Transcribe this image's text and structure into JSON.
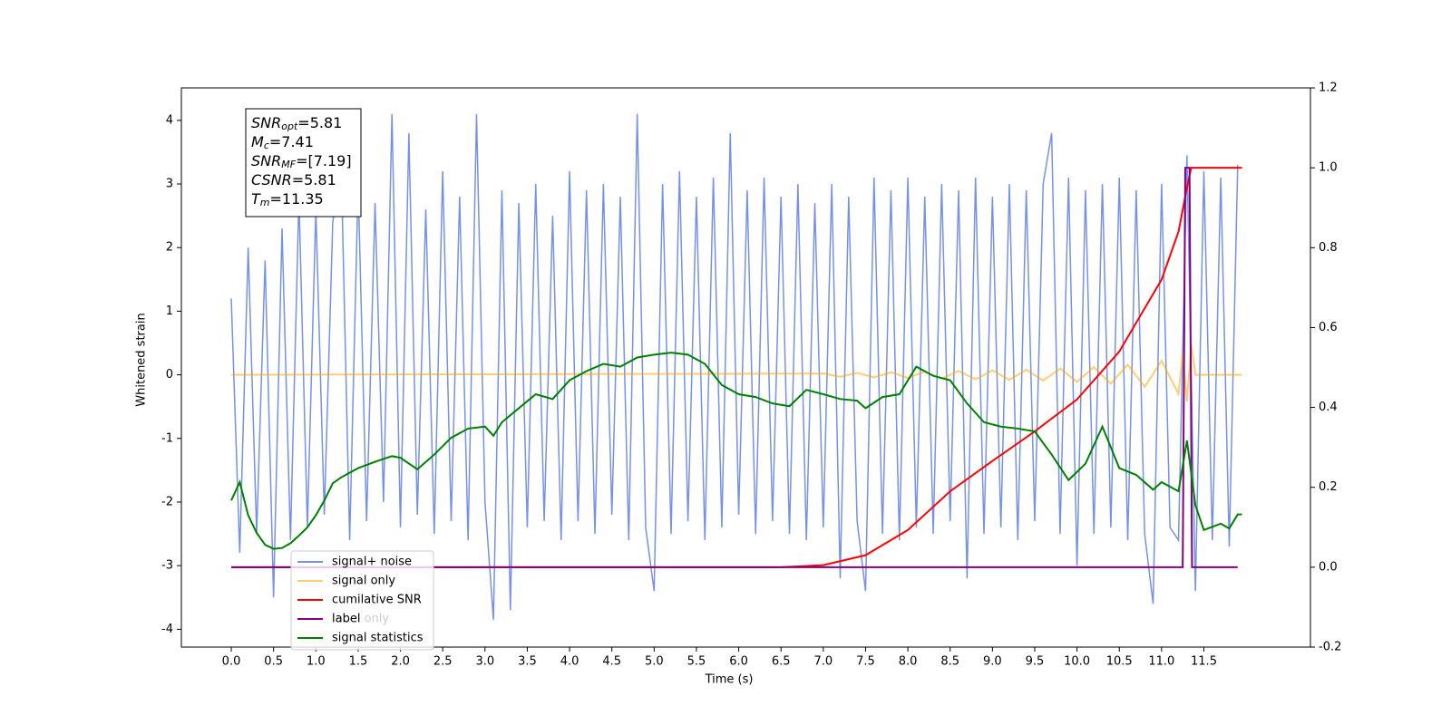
{
  "chart_data": {
    "type": "line",
    "xlabel": "Time (s)",
    "ylabel": "Whitened strain",
    "xlim": [
      -0.59,
      12.76
    ],
    "ylim": [
      -4.28,
      4.51
    ],
    "y2lim": [
      -0.2,
      1.2
    ],
    "xticks": [
      {
        "value": 0,
        "label": "0.0"
      },
      0.5,
      {
        "value": 1,
        "label": "1.0"
      },
      1.5,
      {
        "value": 2,
        "label": "2.0"
      },
      2.5,
      {
        "value": 3,
        "label": "3.0"
      },
      3.5,
      {
        "value": 4,
        "label": "4.0"
      },
      4.5,
      {
        "value": 5,
        "label": "5.0"
      },
      5.5,
      {
        "value": 6,
        "label": "6.0"
      },
      6.5,
      {
        "value": 7,
        "label": "7.0"
      },
      7.5,
      {
        "value": 8,
        "label": "8.0"
      },
      8.5,
      {
        "value": 9,
        "label": "9.0"
      },
      9.5,
      {
        "value": 10,
        "label": "10.0"
      },
      10.5,
      {
        "value": 11,
        "label": "11.0"
      },
      11.5
    ],
    "yticks": [
      -4,
      -3,
      -2,
      -1,
      0,
      1,
      2,
      3,
      4
    ],
    "y2ticks": [
      -0.2,
      {
        "value": 0,
        "label": "0.0"
      },
      0.2,
      0.4,
      0.6,
      0.8,
      {
        "value": 1,
        "label": "1.0"
      },
      1.2
    ],
    "legend_loc": "lower left",
    "background_legend": [
      "label only"
    ],
    "annotations": [
      {
        "symbol": "SNR",
        "subscript": "opt",
        "text": "=5.81"
      },
      {
        "symbol": "M",
        "subscript": "c",
        "text": "=7.41"
      },
      {
        "symbol": "SNR",
        "subscript": "MF",
        "text": "=[7.19]"
      },
      {
        "symbol": "CSNR",
        "subscript": "",
        "text": "=5.81"
      },
      {
        "symbol": "T",
        "subscript": "m",
        "text": "=11.35"
      }
    ],
    "series": [
      {
        "name": "signal+ noise",
        "color": "#7592e6",
        "axis": "y",
        "x": [
          0,
          0.1,
          0.2,
          0.3,
          0.4,
          0.5,
          0.6,
          0.7,
          0.8,
          0.9,
          1,
          1.1,
          1.2,
          1.3,
          1.4,
          1.5,
          1.6,
          1.7,
          1.8,
          1.9,
          2,
          2.1,
          2.2,
          2.3,
          2.4,
          2.5,
          2.6,
          2.7,
          2.8,
          2.9,
          3,
          3.1,
          3.2,
          3.3,
          3.4,
          3.5,
          3.6,
          3.7,
          3.8,
          3.9,
          4,
          4.1,
          4.2,
          4.3,
          4.4,
          4.5,
          4.6,
          4.7,
          4.8,
          4.9,
          5,
          5.1,
          5.2,
          5.3,
          5.4,
          5.5,
          5.6,
          5.7,
          5.8,
          5.9,
          6,
          6.1,
          6.2,
          6.3,
          6.4,
          6.5,
          6.6,
          6.7,
          6.8,
          6.9,
          7,
          7.1,
          7.2,
          7.3,
          7.4,
          7.5,
          7.6,
          7.7,
          7.8,
          7.9,
          8,
          8.1,
          8.2,
          8.3,
          8.4,
          8.5,
          8.6,
          8.7,
          8.8,
          8.9,
          9,
          9.1,
          9.2,
          9.3,
          9.4,
          9.5,
          9.6,
          9.7,
          9.8,
          9.9,
          10,
          10.1,
          10.2,
          10.3,
          10.4,
          10.5,
          10.6,
          10.7,
          10.8,
          10.9,
          11,
          11.1,
          11.2,
          11.3,
          11.4,
          11.5,
          11.6,
          11.7,
          11.8,
          11.9
        ],
        "values": [
          1.2,
          -2.8,
          2.0,
          -2.5,
          1.8,
          -3.5,
          2.3,
          -2.6,
          2.8,
          -2.4,
          2.6,
          -2.2,
          2.4,
          3.3,
          -2.6,
          3.0,
          -2.3,
          2.7,
          -2.0,
          4.1,
          -2.4,
          3.8,
          -2.2,
          2.6,
          -2.5,
          3.2,
          -2.3,
          2.8,
          -2.6,
          4.1,
          -2.0,
          -3.85,
          2.9,
          -3.7,
          2.7,
          -2.4,
          3.0,
          -2.3,
          2.5,
          -2.6,
          3.2,
          -2.3,
          2.9,
          -2.5,
          3.0,
          -2.2,
          2.8,
          -2.6,
          4.1,
          -2.4,
          -3.4,
          3.0,
          -2.5,
          3.2,
          -2.3,
          2.8,
          -2.6,
          3.1,
          -2.4,
          3.8,
          -2.2,
          2.9,
          -2.5,
          3.1,
          -2.3,
          2.8,
          -2.5,
          3.0,
          -2.6,
          2.7,
          -2.4,
          3.0,
          -3.2,
          2.8,
          -2.3,
          -3.4,
          3.1,
          -2.5,
          2.9,
          -2.6,
          3.1,
          -2.4,
          2.8,
          -2.5,
          3.0,
          -2.3,
          2.9,
          -3.2,
          3.1,
          -2.5,
          2.8,
          -2.4,
          3.0,
          -2.6,
          2.9,
          -2.3,
          3.0,
          3.8,
          -2.5,
          3.1,
          -3.0,
          2.9,
          -2.5,
          3.0,
          -2.4,
          3.1,
          -2.6,
          2.9,
          -2.5,
          -3.6,
          3.0,
          -2.4,
          -2.6,
          3.45,
          -3.4,
          3.2,
          -2.6,
          3.1,
          -2.7,
          3.3
        ]
      },
      {
        "name": "signal only",
        "color": "#ffa500",
        "axis": "y",
        "x": [
          0,
          7.0,
          7.2,
          7.4,
          7.6,
          7.8,
          8.0,
          8.2,
          8.4,
          8.6,
          8.8,
          9.0,
          9.2,
          9.4,
          9.6,
          9.8,
          10.0,
          10.2,
          10.4,
          10.6,
          10.8,
          11.0,
          11.2,
          11.25,
          11.3,
          11.35,
          11.4,
          11.95
        ],
        "values": [
          0,
          0.02,
          -0.03,
          0.03,
          -0.04,
          0.04,
          -0.05,
          0.05,
          -0.06,
          0.06,
          -0.07,
          0.07,
          -0.08,
          0.08,
          -0.09,
          0.1,
          -0.11,
          0.12,
          -0.14,
          0.16,
          -0.19,
          0.22,
          -0.3,
          0.35,
          -0.42,
          0.48,
          0,
          0
        ]
      },
      {
        "name": "cumilative SNR",
        "color": "#ff0000",
        "axis": "y2",
        "x": [
          0,
          6.5,
          7.0,
          7.5,
          8.0,
          8.5,
          9.0,
          9.5,
          10.0,
          10.5,
          11.0,
          11.2,
          11.3,
          11.35,
          11.95
        ],
        "values": [
          0,
          0,
          0.005,
          0.03,
          0.093,
          0.19,
          0.266,
          0.34,
          0.42,
          0.54,
          0.72,
          0.84,
          0.95,
          1.0,
          1.0
        ]
      },
      {
        "name": "label",
        "color": "#800080",
        "axis": "y2",
        "x": [
          0,
          11.25,
          11.28,
          11.33,
          11.36,
          11.9
        ],
        "values": [
          0,
          0,
          1,
          1,
          0,
          0
        ]
      },
      {
        "name": "signal statistics",
        "color": "#008000",
        "axis": "y2",
        "x": [
          0,
          0.1,
          0.2,
          0.3,
          0.4,
          0.5,
          0.6,
          0.7,
          0.8,
          0.9,
          1.0,
          1.1,
          1.2,
          1.3,
          1.5,
          1.7,
          1.9,
          2.0,
          2.2,
          2.4,
          2.6,
          2.8,
          3.0,
          3.1,
          3.2,
          3.4,
          3.6,
          3.8,
          4.0,
          4.2,
          4.4,
          4.6,
          4.8,
          5.0,
          5.2,
          5.4,
          5.6,
          5.8,
          6.0,
          6.2,
          6.4,
          6.6,
          6.8,
          7.0,
          7.2,
          7.4,
          7.5,
          7.7,
          7.9,
          8.1,
          8.3,
          8.5,
          8.7,
          8.9,
          9.1,
          9.3,
          9.5,
          9.7,
          9.9,
          10.1,
          10.3,
          10.5,
          10.7,
          10.9,
          11.0,
          11.2,
          11.3,
          11.4,
          11.5,
          11.7,
          11.8,
          11.9,
          11.95
        ],
        "values": [
          0.167,
          0.213,
          0.13,
          0.086,
          0.056,
          0.046,
          0.048,
          0.06,
          0.079,
          0.1,
          0.13,
          0.167,
          0.21,
          0.225,
          0.248,
          0.264,
          0.278,
          0.274,
          0.245,
          0.282,
          0.324,
          0.347,
          0.352,
          0.329,
          0.363,
          0.398,
          0.433,
          0.421,
          0.468,
          0.491,
          0.509,
          0.502,
          0.525,
          0.532,
          0.537,
          0.532,
          0.509,
          0.456,
          0.433,
          0.426,
          0.41,
          0.403,
          0.444,
          0.433,
          0.421,
          0.417,
          0.398,
          0.426,
          0.433,
          0.502,
          0.479,
          0.468,
          0.41,
          0.363,
          0.352,
          0.347,
          0.34,
          0.282,
          0.218,
          0.259,
          0.352,
          0.248,
          0.231,
          0.194,
          0.213,
          0.19,
          0.317,
          0.155,
          0.093,
          0.109,
          0.097,
          0.132,
          0.132
        ]
      }
    ]
  }
}
